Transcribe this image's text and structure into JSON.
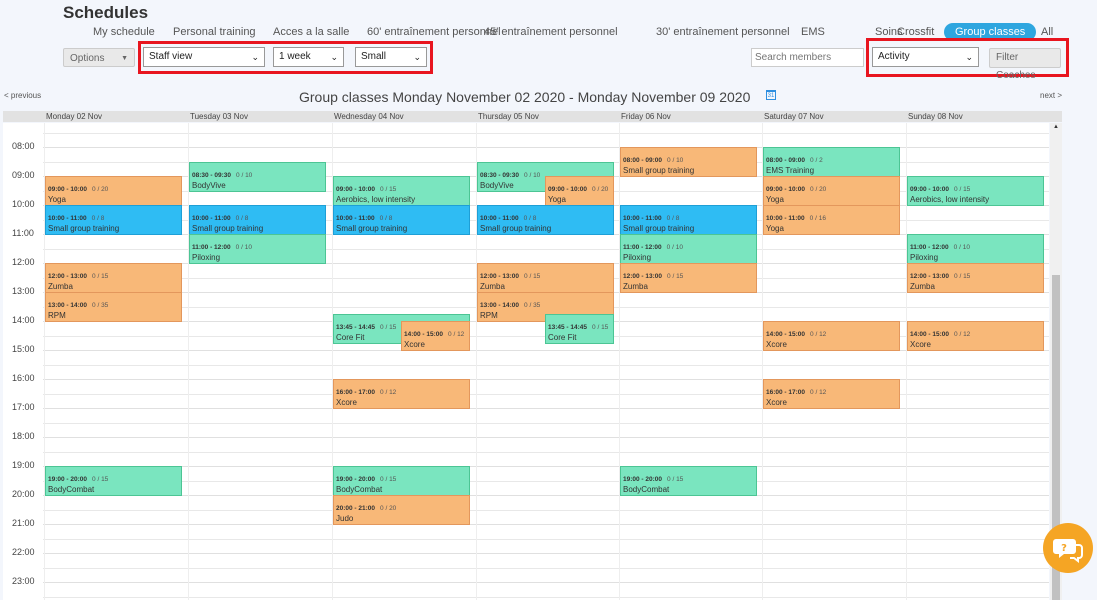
{
  "header": {
    "title": "Schedules"
  },
  "tabs": [
    {
      "label": "My schedule",
      "active": false
    },
    {
      "label": "Personal training",
      "active": false
    },
    {
      "label": "Acces a la salle",
      "active": false
    },
    {
      "label": "60' entraînement personnel",
      "active": false
    },
    {
      "label": "45' entraînement personnel",
      "active": false
    },
    {
      "label": "30' entraînement personnel",
      "active": false
    },
    {
      "label": "EMS",
      "active": false
    },
    {
      "label": "Soins",
      "active": false
    },
    {
      "label": "Crossfit",
      "active": false
    },
    {
      "label": "Group classes",
      "active": true
    },
    {
      "label": "All",
      "active": false
    }
  ],
  "toolbar": {
    "options_label": "Options",
    "view_select": "Staff view",
    "period_select": "1 week",
    "size_select": "Small",
    "search_placeholder": "Search members",
    "activity_select": "Activity",
    "filter_coaches_label": "Filter Coaches"
  },
  "nav": {
    "previous": "< previous",
    "next": "next >",
    "title": "Group classes Monday November 02 2020 - Monday November 09 2020",
    "calendar_icon": "calendar-icon",
    "calendar_day": "31"
  },
  "days": [
    "Monday 02 Nov",
    "Tuesday 03 Nov",
    "Wednesday 04 Nov",
    "Thursday 05 Nov",
    "Friday 06 Nov",
    "Saturday 07 Nov",
    "Sunday 08 Nov"
  ],
  "hours": [
    "08:00",
    "09:00",
    "10:00",
    "11:00",
    "12:00",
    "13:00",
    "14:00",
    "15:00",
    "16:00",
    "17:00",
    "18:00",
    "19:00",
    "20:00",
    "21:00",
    "22:00",
    "23:00"
  ],
  "colors": {
    "orange": "#f8b878",
    "green": "#7ae5bf",
    "blue": "#2fbcf3"
  },
  "events": [
    {
      "day": 0,
      "start": "09:00",
      "end": "10:00",
      "cap": "0 / 20",
      "name": "Yoga",
      "color": "orange"
    },
    {
      "day": 0,
      "start": "10:00",
      "end": "11:00",
      "cap": "0 / 8",
      "name": "Small group training",
      "color": "blue"
    },
    {
      "day": 0,
      "start": "12:00",
      "end": "13:00",
      "cap": "0 / 15",
      "name": "Zumba",
      "color": "orange"
    },
    {
      "day": 0,
      "start": "13:00",
      "end": "14:00",
      "cap": "0 / 35",
      "name": "RPM",
      "color": "orange"
    },
    {
      "day": 0,
      "start": "19:00",
      "end": "20:00",
      "cap": "0 / 15",
      "name": "BodyCombat",
      "color": "green"
    },
    {
      "day": 1,
      "start": "08:30",
      "end": "09:30",
      "cap": "0 / 10",
      "name": "BodyVive",
      "color": "green"
    },
    {
      "day": 1,
      "start": "10:00",
      "end": "11:00",
      "cap": "0 / 8",
      "name": "Small group training",
      "color": "blue"
    },
    {
      "day": 1,
      "start": "11:00",
      "end": "12:00",
      "cap": "0 / 10",
      "name": "Piloxing",
      "color": "green"
    },
    {
      "day": 2,
      "start": "09:00",
      "end": "10:00",
      "cap": "0 / 15",
      "name": "Aerobics, low intensity",
      "color": "green"
    },
    {
      "day": 2,
      "start": "10:00",
      "end": "11:00",
      "cap": "0 / 8",
      "name": "Small group training",
      "color": "blue"
    },
    {
      "day": 2,
      "start": "13:45",
      "end": "14:45",
      "cap": "0 / 15",
      "name": "Core Fit",
      "color": "green"
    },
    {
      "day": 2,
      "start": "14:00",
      "end": "15:00",
      "cap": "0 / 12",
      "name": "Xcore",
      "color": "orange"
    },
    {
      "day": 2,
      "start": "16:00",
      "end": "17:00",
      "cap": "0 / 12",
      "name": "Xcore",
      "color": "orange"
    },
    {
      "day": 2,
      "start": "19:00",
      "end": "20:00",
      "cap": "0 / 15",
      "name": "BodyCombat",
      "color": "green"
    },
    {
      "day": 2,
      "start": "20:00",
      "end": "21:00",
      "cap": "0 / 20",
      "name": "Judo",
      "color": "orange"
    },
    {
      "day": 3,
      "start": "08:30",
      "end": "09:30",
      "cap": "0 / 10",
      "name": "BodyVive",
      "color": "green"
    },
    {
      "day": 3,
      "start": "09:00",
      "end": "10:00",
      "cap": "0 / 20",
      "name": "Yoga",
      "color": "orange"
    },
    {
      "day": 3,
      "start": "10:00",
      "end": "11:00",
      "cap": "0 / 8",
      "name": "Small group training",
      "color": "blue"
    },
    {
      "day": 3,
      "start": "12:00",
      "end": "13:00",
      "cap": "0 / 15",
      "name": "Zumba",
      "color": "orange"
    },
    {
      "day": 3,
      "start": "13:00",
      "end": "14:00",
      "cap": "0 / 35",
      "name": "RPM",
      "color": "orange"
    },
    {
      "day": 3,
      "start": "13:45",
      "end": "14:45",
      "cap": "0 / 15",
      "name": "Core Fit",
      "color": "green"
    },
    {
      "day": 4,
      "start": "08:00",
      "end": "09:00",
      "cap": "0 / 10",
      "name": "Small group training",
      "color": "orange"
    },
    {
      "day": 4,
      "start": "10:00",
      "end": "11:00",
      "cap": "0 / 8",
      "name": "Small group training",
      "color": "blue"
    },
    {
      "day": 4,
      "start": "11:00",
      "end": "12:00",
      "cap": "0 / 10",
      "name": "Piloxing",
      "color": "green"
    },
    {
      "day": 4,
      "start": "12:00",
      "end": "13:00",
      "cap": "0 / 15",
      "name": "Zumba",
      "color": "orange"
    },
    {
      "day": 4,
      "start": "19:00",
      "end": "20:00",
      "cap": "0 / 15",
      "name": "BodyCombat",
      "color": "green"
    },
    {
      "day": 5,
      "start": "08:00",
      "end": "09:00",
      "cap": "0 / 2",
      "name": "EMS Training",
      "color": "green"
    },
    {
      "day": 5,
      "start": "09:00",
      "end": "10:00",
      "cap": "0 / 20",
      "name": "Yoga",
      "color": "orange"
    },
    {
      "day": 5,
      "start": "10:00",
      "end": "11:00",
      "cap": "0 / 16",
      "name": "Yoga",
      "color": "orange"
    },
    {
      "day": 5,
      "start": "14:00",
      "end": "15:00",
      "cap": "0 / 12",
      "name": "Xcore",
      "color": "orange"
    },
    {
      "day": 5,
      "start": "16:00",
      "end": "17:00",
      "cap": "0 / 12",
      "name": "Xcore",
      "color": "orange"
    },
    {
      "day": 6,
      "start": "09:00",
      "end": "10:00",
      "cap": "0 / 15",
      "name": "Aerobics, low intensity",
      "color": "green"
    },
    {
      "day": 6,
      "start": "11:00",
      "end": "12:00",
      "cap": "0 / 10",
      "name": "Piloxing",
      "color": "green"
    },
    {
      "day": 6,
      "start": "12:00",
      "end": "13:00",
      "cap": "0 / 15",
      "name": "Zumba",
      "color": "orange"
    },
    {
      "day": 6,
      "start": "14:00",
      "end": "15:00",
      "cap": "0 / 12",
      "name": "Xcore",
      "color": "orange"
    }
  ]
}
